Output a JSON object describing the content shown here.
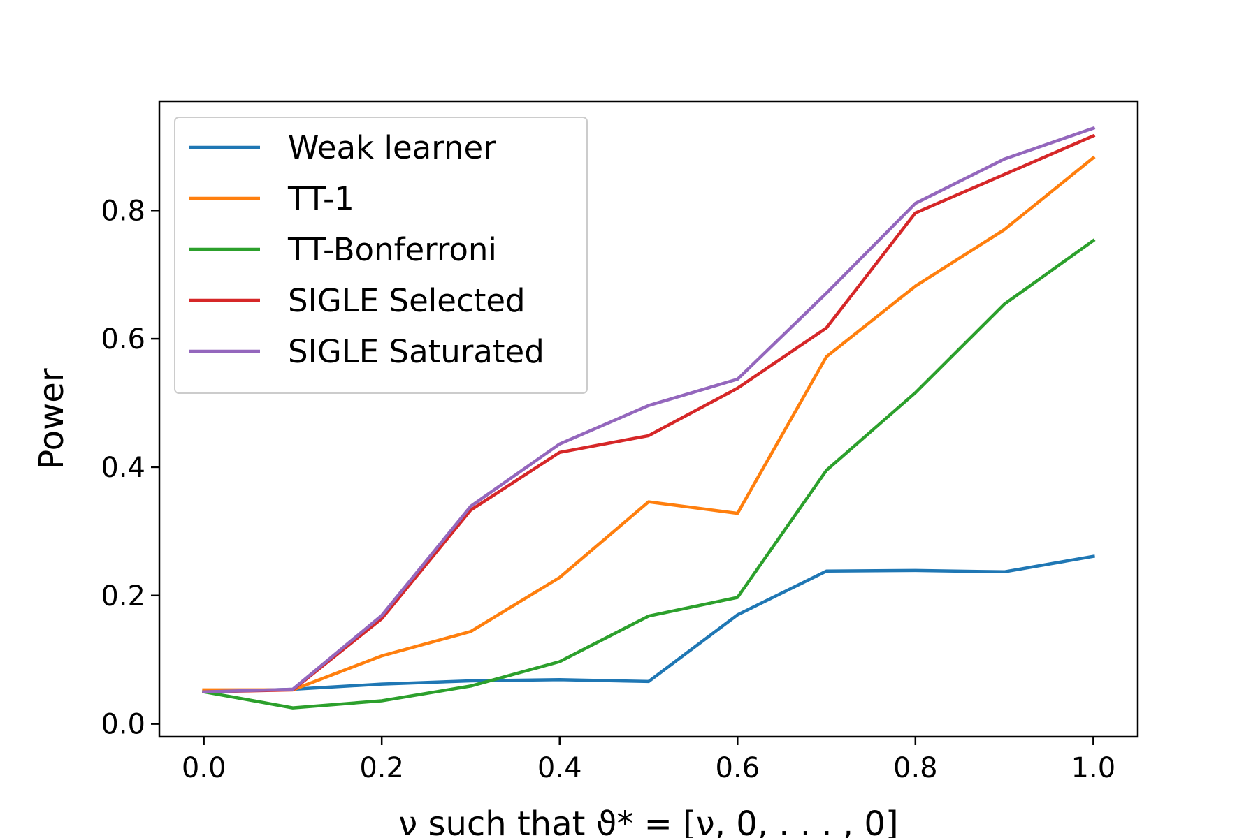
{
  "chart_data": {
    "type": "line",
    "title": "",
    "xlabel": "ν such that ϑ* = [ν, 0, . . . , 0]",
    "ylabel": "Power",
    "x": [
      0.0,
      0.1,
      0.2,
      0.3,
      0.4,
      0.5,
      0.6,
      0.7,
      0.8,
      0.9,
      1.0
    ],
    "xlim": [
      -0.05,
      1.05
    ],
    "ylim": [
      -0.02,
      0.97
    ],
    "xticks": [
      "0.0",
      "0.2",
      "0.4",
      "0.6",
      "0.8",
      "1.0"
    ],
    "yticks": [
      "0.0",
      "0.2",
      "0.4",
      "0.6",
      "0.8"
    ],
    "grid": false,
    "legend_position": "upper-left",
    "series": [
      {
        "name": "Weak learner",
        "color": "#1f77b4",
        "values": [
          0.05,
          0.054,
          0.062,
          0.067,
          0.069,
          0.066,
          0.17,
          0.238,
          0.239,
          0.237,
          0.261
        ]
      },
      {
        "name": "TT-1",
        "color": "#ff7f0e",
        "values": [
          0.053,
          0.053,
          0.106,
          0.144,
          0.228,
          0.346,
          0.328,
          0.572,
          0.682,
          0.77,
          0.882
        ]
      },
      {
        "name": "TT-Bonferroni",
        "color": "#2ca02c",
        "values": [
          0.05,
          0.025,
          0.036,
          0.059,
          0.097,
          0.168,
          0.197,
          0.395,
          0.516,
          0.654,
          0.753
        ]
      },
      {
        "name": "SIGLE Selected",
        "color": "#d62728",
        "values": [
          0.05,
          0.053,
          0.164,
          0.333,
          0.423,
          0.449,
          0.523,
          0.617,
          0.796,
          0.856,
          0.916
        ]
      },
      {
        "name": "SIGLE Saturated",
        "color": "#9467bd",
        "values": [
          0.05,
          0.054,
          0.169,
          0.339,
          0.436,
          0.496,
          0.537,
          0.671,
          0.811,
          0.88,
          0.928
        ]
      }
    ]
  }
}
